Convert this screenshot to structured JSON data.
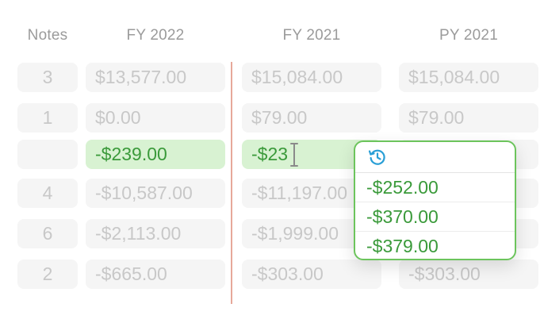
{
  "headers": {
    "notes": "Notes",
    "fy2022": "FY 2022",
    "fy2021": "FY 2021",
    "py2021": "PY 2021"
  },
  "rows": [
    {
      "note": "3",
      "fy2022": "$13,577.00",
      "fy2021": "$15,084.00",
      "py2021": "$15,084.00"
    },
    {
      "note": "1",
      "fy2022": "$0.00",
      "fy2021": "$79.00",
      "py2021": "$79.00"
    },
    {
      "note": "",
      "fy2022": "-$239.00",
      "fy2021": "-$23",
      "py2021": ""
    },
    {
      "note": "4",
      "fy2022": "-$10,587.00",
      "fy2021": "-$11,197.00",
      "py2021": ""
    },
    {
      "note": "6",
      "fy2022": "-$2,113.00",
      "fy2021": "-$1,999.00",
      "py2021": ""
    },
    {
      "note": "2",
      "fy2022": "-$665.00",
      "fy2021": "-$303.00",
      "py2021": "-$303.00"
    }
  ],
  "suggestions": {
    "icon": "history-clock-icon",
    "options": [
      "-$252.00",
      "-$370.00",
      "-$379.00"
    ]
  },
  "colors": {
    "accent_green": "#3a9a3a",
    "divider": "#e6a89a",
    "icon_blue": "#2a9fd6"
  }
}
